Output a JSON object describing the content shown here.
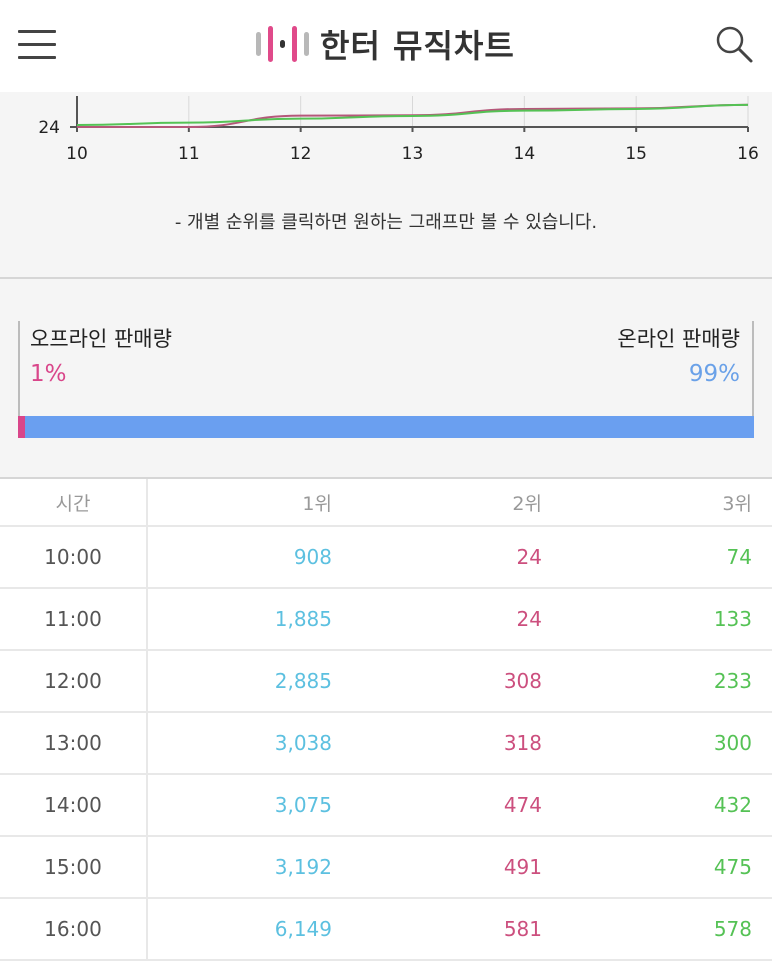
{
  "header": {
    "title": "한터 뮤직차트",
    "icons": {
      "menu": "menu-icon",
      "search": "search-icon",
      "logo": "bars-logo-icon"
    },
    "logo_colors": [
      "#b8b8b8",
      "#e04a8a",
      "#333333",
      "#e04a8a",
      "#b8b8b8"
    ]
  },
  "chart_data": {
    "type": "line",
    "x": [
      10,
      11,
      12,
      13,
      14,
      15,
      16
    ],
    "tick_labels": [
      "10",
      "11",
      "12",
      "13",
      "14",
      "15",
      "16"
    ],
    "y_tick_label": "24",
    "series": [
      {
        "color": "#b5577a",
        "values": [
          24,
          24,
          308,
          318,
          474,
          491,
          581
        ]
      },
      {
        "color": "#55c255",
        "values": [
          74,
          133,
          233,
          300,
          432,
          475,
          578
        ]
      }
    ],
    "note": "- 개별 순위를 클릭하면 원하는 그래프만 볼 수 있습니다."
  },
  "sales": {
    "offline_label": "오프라인 판매량",
    "offline_pct": "1%",
    "online_label": "온라인 판매량",
    "online_pct": "99%",
    "offline_share": 0.01,
    "colors": {
      "offline": "#d9468a",
      "online": "#6a9ff0"
    }
  },
  "table": {
    "headers": [
      "시간",
      "1위",
      "2위",
      "3위"
    ],
    "rows": [
      [
        "10:00",
        "908",
        "24",
        "74"
      ],
      [
        "11:00",
        "1,885",
        "24",
        "133"
      ],
      [
        "12:00",
        "2,885",
        "308",
        "233"
      ],
      [
        "13:00",
        "3,038",
        "318",
        "300"
      ],
      [
        "14:00",
        "3,075",
        "474",
        "432"
      ],
      [
        "15:00",
        "3,192",
        "491",
        "475"
      ],
      [
        "16:00",
        "6,149",
        "581",
        "578"
      ]
    ]
  }
}
